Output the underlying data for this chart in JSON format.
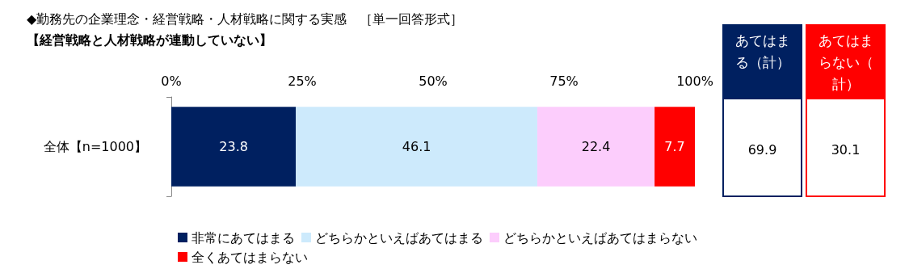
{
  "chart_data": {
    "type": "bar",
    "orientation": "horizontal",
    "stacked": true,
    "title": "◆勤務先の企業理念・経営戦略・人材戦略に関する実感　［単一回答形式］",
    "subtitle": "【経営戦略と人材戦略が連動していない】",
    "categories": [
      "全体【n=1000】"
    ],
    "series": [
      {
        "name": "非常にあてはまる",
        "color": "#002060",
        "values": [
          23.8
        ]
      },
      {
        "name": "どちらかといえばあてはまる",
        "color": "#cdeafc",
        "values": [
          46.1
        ]
      },
      {
        "name": "どちらかといえばあてはまらない",
        "color": "#fccdfc",
        "values": [
          22.4
        ]
      },
      {
        "name": "全くあてはまらない",
        "color": "#ff0000",
        "values": [
          7.7
        ]
      }
    ],
    "xlim": [
      0,
      100
    ],
    "xticks": [
      {
        "value": 0,
        "label": "0%"
      },
      {
        "value": 25,
        "label": "25%"
      },
      {
        "value": 50,
        "label": "50%"
      },
      {
        "value": 75,
        "label": "75%"
      },
      {
        "value": 100,
        "label": "100%"
      }
    ],
    "data_labels": true,
    "grid": false,
    "legend": "bottom",
    "annotations": [
      "あてはまる（計）",
      "69.9",
      "あてはまらない（計）",
      "30.1"
    ]
  }
}
